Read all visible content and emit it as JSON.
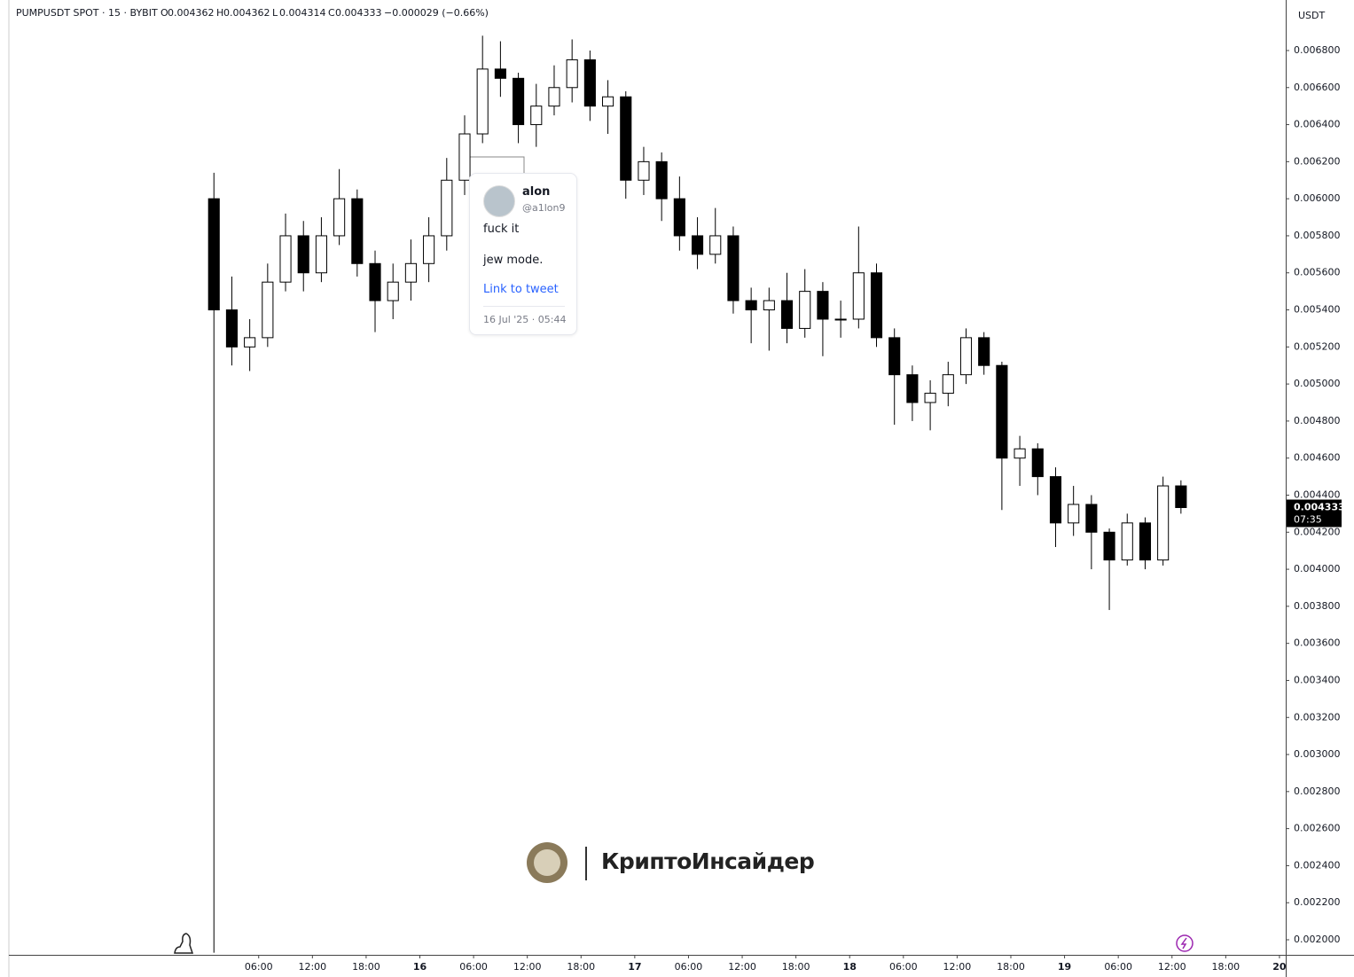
{
  "chart_data": {
    "type": "candlestick",
    "header": {
      "symbol": "PUMPUSDT SPOT · 15 · BYBIT",
      "ohlc": [
        {
          "key": "O",
          "value": "0.004362"
        },
        {
          "key": "H",
          "value": "0.004362"
        },
        {
          "key": "L",
          "value": "0.004314"
        },
        {
          "key": "C",
          "value": "0.004333"
        }
      ],
      "change": "−0.000029 (−0.66%)"
    },
    "y_unit": "USDT",
    "countdown": "07:35",
    "up_color": "#ffffff",
    "down_color": "#000000",
    "wick_color": "#000000",
    "x": [
      1,
      3,
      5,
      7,
      9,
      11,
      13,
      15,
      17,
      19,
      21,
      23,
      25,
      27,
      29,
      31,
      33,
      35,
      37,
      39,
      41,
      43,
      45,
      47,
      49,
      51,
      53,
      55,
      57,
      59,
      61,
      63,
      65,
      67,
      69,
      71,
      73,
      75,
      77,
      79,
      81,
      83,
      85,
      87,
      89,
      91,
      93,
      95,
      97,
      99,
      101,
      103,
      105,
      107,
      109
    ],
    "open": [
      0.006,
      0.0054,
      0.0052,
      0.00525,
      0.00555,
      0.0058,
      0.0056,
      0.0058,
      0.006,
      0.00565,
      0.00545,
      0.00555,
      0.00565,
      0.0058,
      0.0061,
      0.00635,
      0.0067,
      0.00665,
      0.0064,
      0.0065,
      0.0066,
      0.00675,
      0.0065,
      0.00655,
      0.0061,
      0.0062,
      0.006,
      0.0058,
      0.0057,
      0.0058,
      0.00545,
      0.0054,
      0.00545,
      0.0053,
      0.0055,
      0.00535,
      0.00535,
      0.0056,
      0.00525,
      0.00505,
      0.0049,
      0.00495,
      0.00505,
      0.00525,
      0.0051,
      0.0046,
      0.00465,
      0.0045,
      0.00425,
      0.00435,
      0.0042,
      0.00405,
      0.00425,
      0.00405,
      0.00445
    ],
    "high": [
      0.00614,
      0.00558,
      0.00535,
      0.00565,
      0.00592,
      0.00588,
      0.0059,
      0.00616,
      0.00605,
      0.00572,
      0.00565,
      0.00578,
      0.0059,
      0.00622,
      0.00645,
      0.00688,
      0.00685,
      0.00668,
      0.00662,
      0.00672,
      0.00686,
      0.0068,
      0.00664,
      0.00658,
      0.00628,
      0.00625,
      0.00612,
      0.0059,
      0.00595,
      0.00585,
      0.00552,
      0.00552,
      0.0056,
      0.00562,
      0.00555,
      0.00545,
      0.00585,
      0.00565,
      0.0053,
      0.0051,
      0.00502,
      0.00512,
      0.0053,
      0.00528,
      0.00512,
      0.00472,
      0.00468,
      0.00455,
      0.00445,
      0.0044,
      0.00422,
      0.0043,
      0.00428,
      0.0045,
      0.00448
    ],
    "low": [
      0.00193,
      0.0051,
      0.00507,
      0.0052,
      0.0055,
      0.0055,
      0.00555,
      0.00575,
      0.00558,
      0.00528,
      0.00535,
      0.00545,
      0.00555,
      0.00572,
      0.00602,
      0.0063,
      0.00655,
      0.0063,
      0.00628,
      0.00645,
      0.00652,
      0.00642,
      0.00635,
      0.006,
      0.00602,
      0.00588,
      0.00572,
      0.00562,
      0.00565,
      0.00538,
      0.00522,
      0.00518,
      0.00522,
      0.00525,
      0.00515,
      0.00525,
      0.0053,
      0.0052,
      0.00478,
      0.0048,
      0.00475,
      0.00488,
      0.005,
      0.00505,
      0.00432,
      0.00445,
      0.0044,
      0.00412,
      0.00418,
      0.004,
      0.00378,
      0.00402,
      0.004,
      0.00402,
      0.0043
    ],
    "close": [
      0.0054,
      0.0052,
      0.00525,
      0.00555,
      0.0058,
      0.0056,
      0.0058,
      0.006,
      0.00565,
      0.00545,
      0.00555,
      0.00565,
      0.0058,
      0.0061,
      0.00635,
      0.0067,
      0.00665,
      0.0064,
      0.0065,
      0.0066,
      0.00675,
      0.0065,
      0.00655,
      0.0061,
      0.0062,
      0.006,
      0.0058,
      0.0057,
      0.0058,
      0.00545,
      0.0054,
      0.00545,
      0.0053,
      0.0055,
      0.00535,
      0.00535,
      0.0056,
      0.00525,
      0.00505,
      0.0049,
      0.00495,
      0.00505,
      0.00525,
      0.0051,
      0.0046,
      0.00465,
      0.0045,
      0.00425,
      0.00435,
      0.0042,
      0.00405,
      0.00425,
      0.00405,
      0.00445,
      0.004333
    ],
    "xlim": [
      -21.9,
      120.7
    ],
    "xticks": [
      {
        "value": 6,
        "label": "06:00"
      },
      {
        "value": 12,
        "label": "12:00"
      },
      {
        "value": 18,
        "label": "18:00"
      },
      {
        "value": 24,
        "label": "16"
      },
      {
        "value": 30,
        "label": "06:00"
      },
      {
        "value": 36,
        "label": "12:00"
      },
      {
        "value": 42,
        "label": "18:00"
      },
      {
        "value": 48,
        "label": "17"
      },
      {
        "value": 54,
        "label": "06:00"
      },
      {
        "value": 60,
        "label": "12:00"
      },
      {
        "value": 66,
        "label": "18:00"
      },
      {
        "value": 72,
        "label": "18"
      },
      {
        "value": 78,
        "label": "06:00"
      },
      {
        "value": 84,
        "label": "12:00"
      },
      {
        "value": 90,
        "label": "18:00"
      },
      {
        "value": 96,
        "label": "19"
      },
      {
        "value": 102,
        "label": "06:00"
      },
      {
        "value": 108,
        "label": "12:00"
      },
      {
        "value": 114,
        "label": "18:00"
      },
      {
        "value": 120,
        "label": "20"
      }
    ],
    "ylim": [
      0.0019187,
      0.0070727
    ],
    "yticks": [
      {
        "value": 0.002,
        "label": "0.002000"
      },
      {
        "value": 0.0022,
        "label": "0.002200"
      },
      {
        "value": 0.0024,
        "label": "0.002400"
      },
      {
        "value": 0.0026,
        "label": "0.002600"
      },
      {
        "value": 0.0028,
        "label": "0.002800"
      },
      {
        "value": 0.003,
        "label": "0.003000"
      },
      {
        "value": 0.0032,
        "label": "0.003200"
      },
      {
        "value": 0.0034,
        "label": "0.003400"
      },
      {
        "value": 0.0036,
        "label": "0.003600"
      },
      {
        "value": 0.0038,
        "label": "0.003800"
      },
      {
        "value": 0.004,
        "label": "0.004000"
      },
      {
        "value": 0.0042,
        "label": "0.004200"
      },
      {
        "value": 0.0044,
        "label": "0.004400"
      },
      {
        "value": 0.0046,
        "label": "0.004600"
      },
      {
        "value": 0.0048,
        "label": "0.004800"
      },
      {
        "value": 0.005,
        "label": "0.005000"
      },
      {
        "value": 0.0052,
        "label": "0.005200"
      },
      {
        "value": 0.0054,
        "label": "0.005400"
      },
      {
        "value": 0.0056,
        "label": "0.005600"
      },
      {
        "value": 0.0058,
        "label": "0.005800"
      },
      {
        "value": 0.006,
        "label": "0.006000"
      },
      {
        "value": 0.0062,
        "label": "0.006200"
      },
      {
        "value": 0.0064,
        "label": "0.006400"
      },
      {
        "value": 0.0066,
        "label": "0.006600"
      },
      {
        "value": 0.0068,
        "label": "0.006800"
      }
    ],
    "tweet": {
      "name": "alon",
      "handle": "@a1lon9",
      "lines": [
        "fuck it",
        "jew mode."
      ],
      "link": "Link to tweet",
      "date": "16 Jul '25 · 05:44"
    },
    "watermark": "КриптоИнсайдер"
  }
}
